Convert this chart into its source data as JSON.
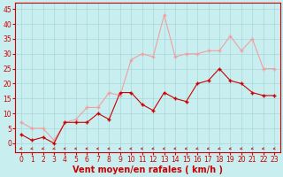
{
  "x": [
    0,
    1,
    2,
    3,
    4,
    5,
    6,
    7,
    8,
    9,
    10,
    11,
    12,
    13,
    14,
    15,
    16,
    17,
    18,
    19,
    20,
    21,
    22,
    23
  ],
  "wind_mean": [
    3,
    1,
    2,
    0,
    7,
    7,
    7,
    10,
    8,
    17,
    17,
    13,
    11,
    17,
    15,
    14,
    20,
    21,
    25,
    21,
    20,
    17,
    16,
    16
  ],
  "wind_gust": [
    7,
    5,
    5,
    1,
    7,
    8,
    12,
    12,
    17,
    16,
    28,
    30,
    29,
    43,
    29,
    30,
    30,
    31,
    31,
    36,
    31,
    35,
    25,
    25
  ],
  "color_mean": "#cc0000",
  "color_gust": "#f0a0a0",
  "bg_color": "#c8eef0",
  "grid_color": "#a8d8da",
  "xlabel": "Vent moyen/en rafales ( km/h )",
  "yticks": [
    0,
    5,
    10,
    15,
    20,
    25,
    30,
    35,
    40,
    45
  ],
  "ylim": [
    -3,
    47
  ],
  "xlim": [
    -0.5,
    23.5
  ],
  "label_color": "#cc0000",
  "tick_fontsize": 5.5,
  "xlabel_fontsize": 7
}
